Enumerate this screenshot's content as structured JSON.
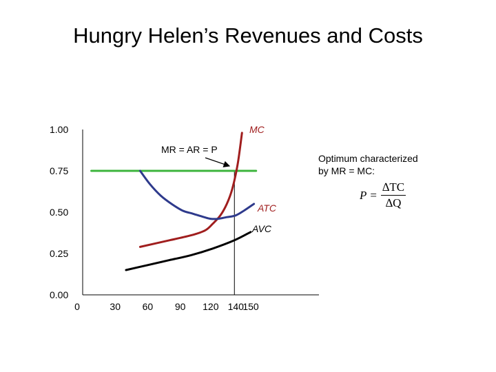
{
  "title": "Hungry Helen’s Revenues and Costs",
  "annotation": {
    "line1": "Optimum characterized",
    "line2": "by MR = MC:",
    "formula_lhs": "P",
    "formula_eq": "=",
    "formula_num": "∆TC",
    "formula_den": "∆Q"
  },
  "chart_data": {
    "type": "line",
    "title": "Hungry Helen’s Revenues and Costs",
    "xlabel": "",
    "ylabel": "",
    "x_ticks": [
      "0",
      "30",
      "60",
      "90",
      "120",
      "140",
      "150"
    ],
    "y_ticks": [
      "0.00",
      "0.25",
      "0.50",
      "0.75",
      "1.00"
    ],
    "xlim": [
      0,
      218
    ],
    "ylim": [
      0,
      1.0
    ],
    "grid": false,
    "optimum_q": 140,
    "series": [
      {
        "name": "MR = AR = P",
        "color": "#3cb43c",
        "x": [
          8,
          160
        ],
        "y": [
          0.75,
          0.75
        ]
      },
      {
        "name": "MC",
        "color": "#a01e1e",
        "x": [
          53,
          80,
          100,
          113,
          120,
          127,
          133,
          138,
          143,
          147
        ],
        "y": [
          0.29,
          0.33,
          0.36,
          0.39,
          0.43,
          0.48,
          0.55,
          0.64,
          0.79,
          0.98
        ]
      },
      {
        "name": "ATC",
        "color": "#2e3a8c",
        "x": [
          53,
          62,
          72,
          82,
          92,
          102,
          112,
          118,
          125,
          133,
          141,
          149,
          158
        ],
        "y": [
          0.75,
          0.67,
          0.6,
          0.55,
          0.51,
          0.49,
          0.47,
          0.46,
          0.46,
          0.47,
          0.48,
          0.51,
          0.55
        ]
      },
      {
        "name": "AVC",
        "color": "#000000",
        "x": [
          40,
          60,
          80,
          100,
          120,
          140,
          155
        ],
        "y": [
          0.15,
          0.18,
          0.21,
          0.24,
          0.28,
          0.33,
          0.38
        ]
      }
    ],
    "labels": {
      "mc": "MC",
      "mr": "MR = AR = P",
      "atc": "ATC",
      "avc": "AVC"
    }
  }
}
